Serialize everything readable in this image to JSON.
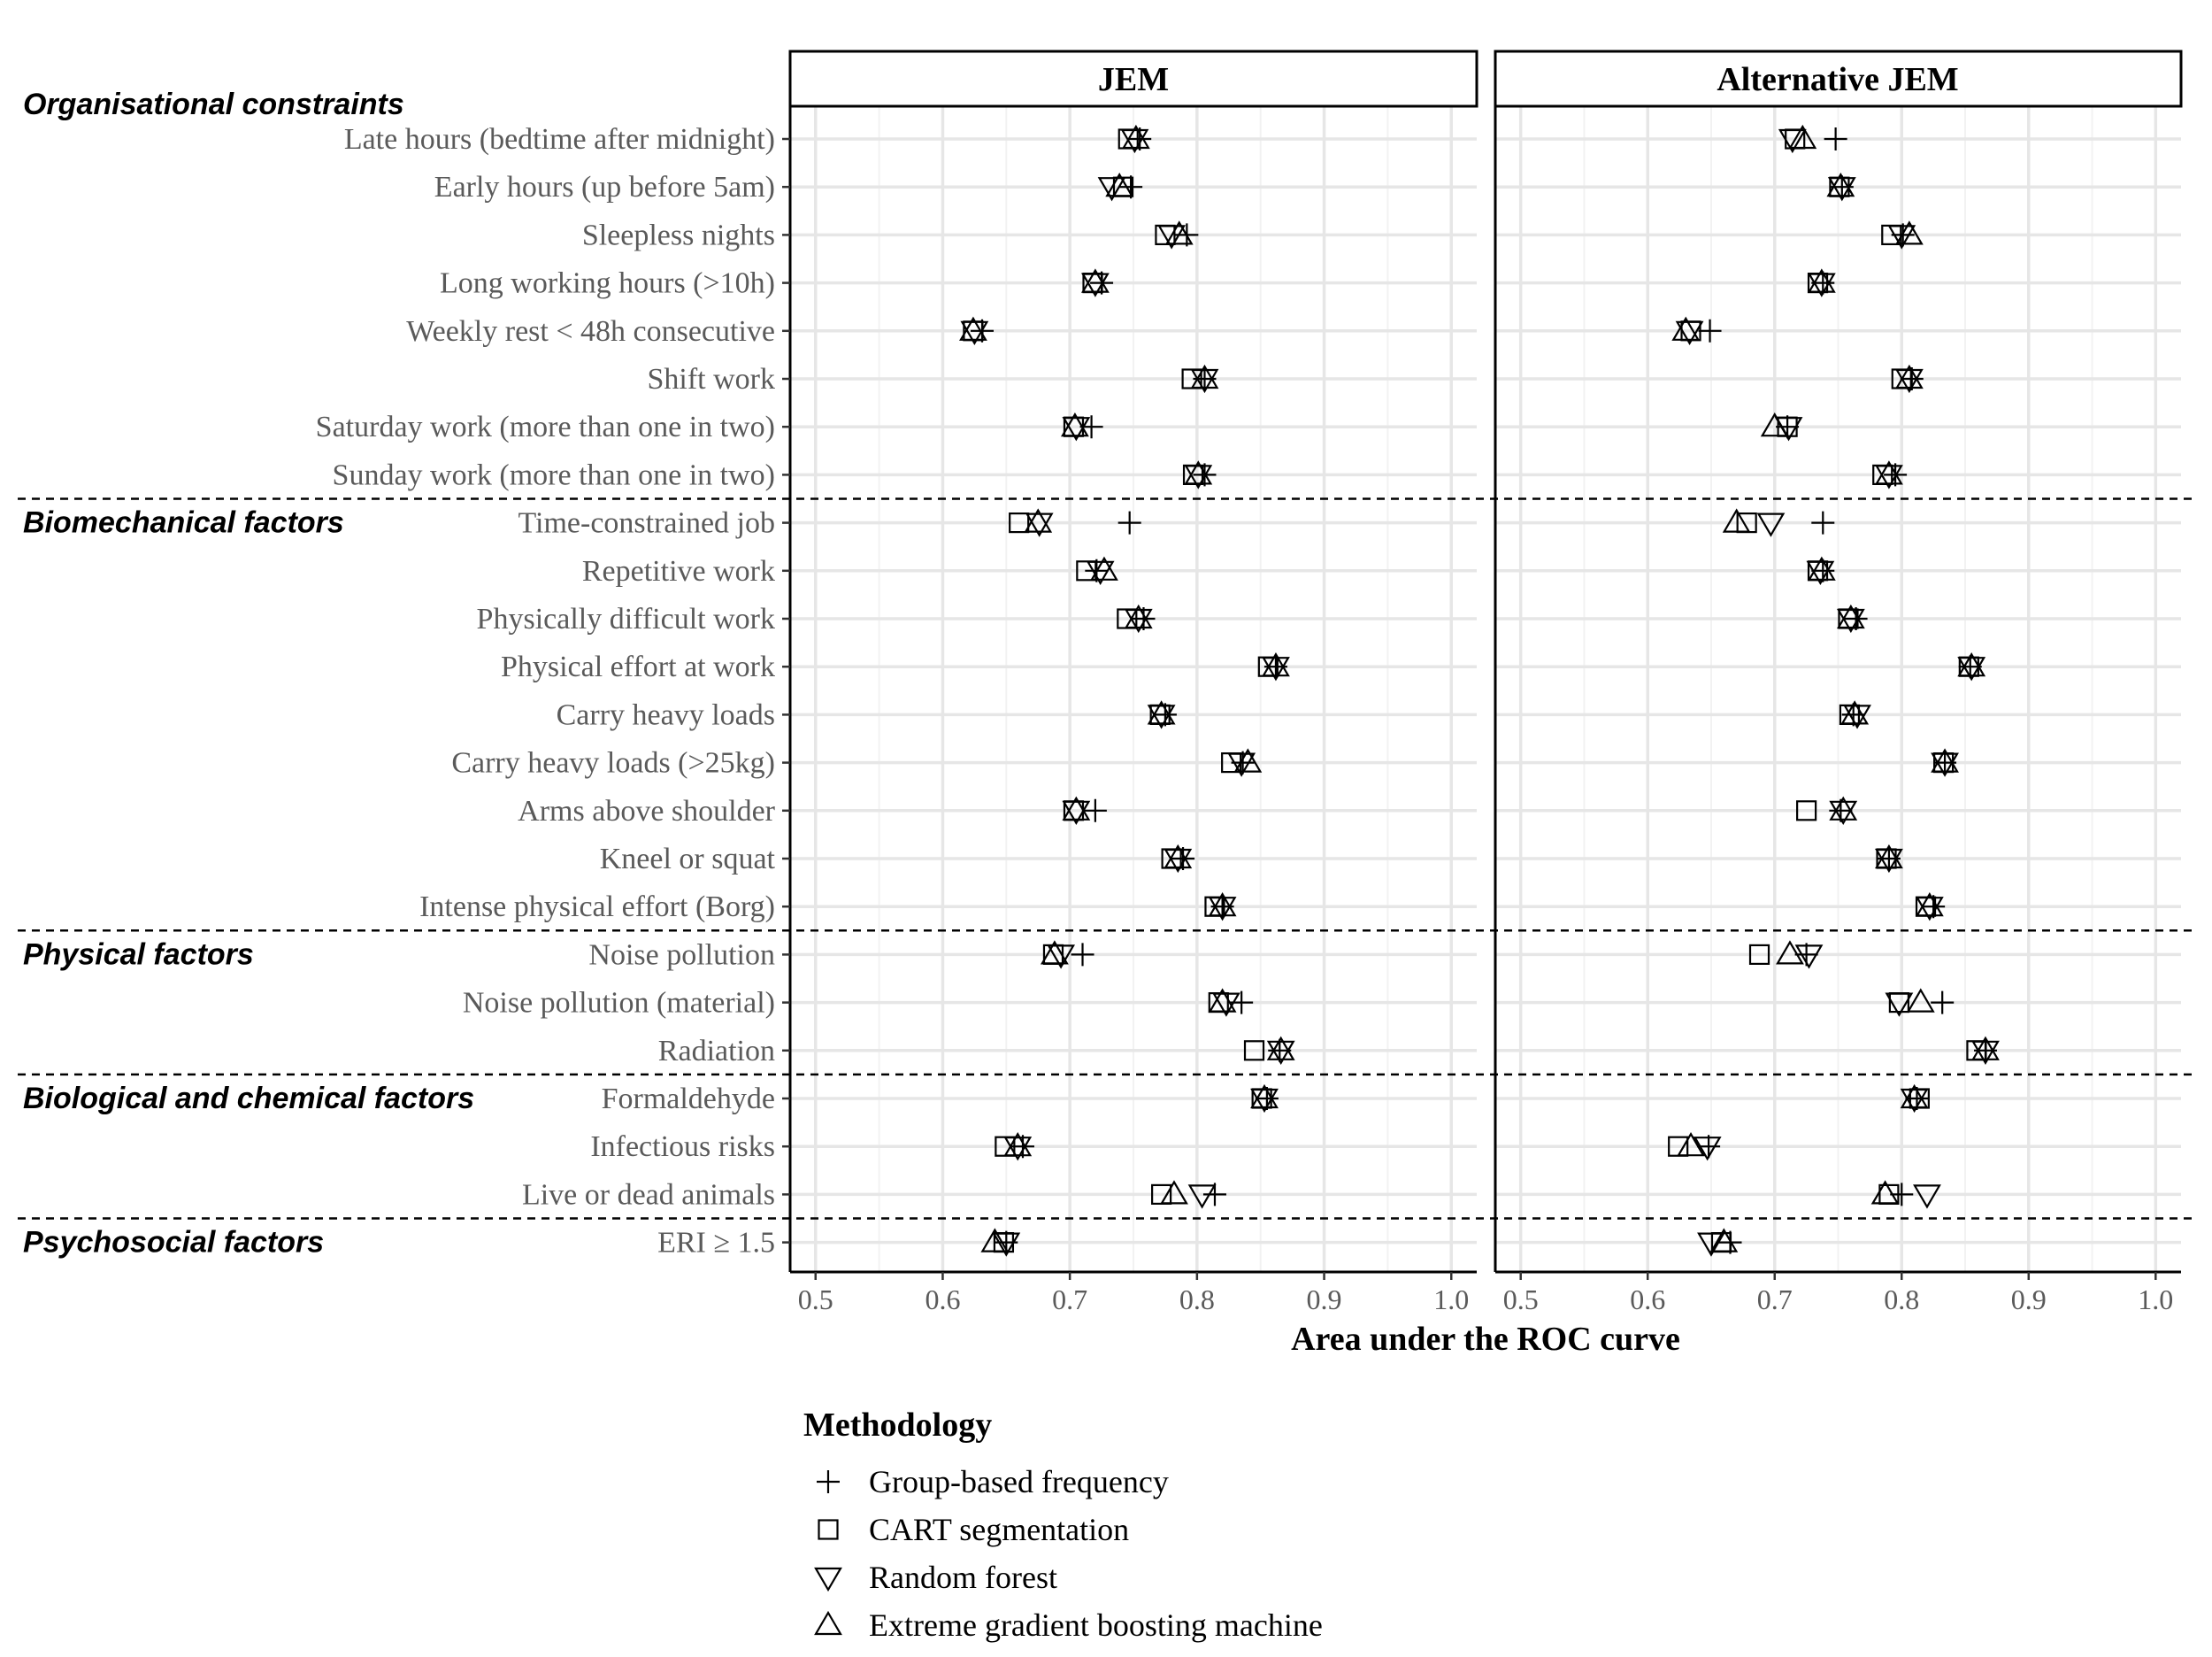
{
  "chart_data": {
    "type": "scatter",
    "xlabel": "Area under the ROC curve",
    "xlim": [
      0.48,
      1.02
    ],
    "xticks": [
      0.5,
      0.6,
      0.7,
      0.8,
      0.9,
      1.0
    ],
    "xtick_labels": [
      "0.5",
      "0.6",
      "0.7",
      "0.8",
      "0.9",
      "1.0"
    ],
    "panels": [
      "JEM",
      "Alternative JEM"
    ],
    "legend": {
      "title": "Methodology",
      "items": [
        {
          "key": "gbf",
          "label": "Group-based frequency",
          "shape": "plus"
        },
        {
          "key": "cart",
          "label": "CART segmentation",
          "shape": "square"
        },
        {
          "key": "rf",
          "label": "Random forest",
          "shape": "triangle-down"
        },
        {
          "key": "xgb",
          "label": "Extreme gradient boosting machine",
          "shape": "triangle-up"
        }
      ]
    },
    "groups": [
      {
        "label": "Organisational constraints",
        "rows": [
          {
            "label": "Late hours (bedtime after midnight)",
            "jem": {
              "gbf": 0.755,
              "cart": 0.746,
              "rf": 0.751,
              "xgb": 0.752
            },
            "alt": {
              "gbf": 0.748,
              "cart": 0.716,
              "rf": 0.714,
              "xgb": 0.722
            }
          },
          {
            "label": "Early hours (up before 5am)",
            "jem": {
              "gbf": 0.748,
              "cart": 0.742,
              "rf": 0.733,
              "xgb": 0.739
            },
            "alt": {
              "gbf": 0.753,
              "cart": 0.751,
              "rf": 0.753,
              "xgb": 0.752
            }
          },
          {
            "label": "Sleepless nights",
            "jem": {
              "gbf": 0.792,
              "cart": 0.775,
              "rf": 0.78,
              "xgb": 0.786
            },
            "alt": {
              "gbf": 0.801,
              "cart": 0.792,
              "rf": 0.8,
              "xgb": 0.806
            }
          },
          {
            "label": "Long working hours (>10h)",
            "jem": {
              "gbf": 0.725,
              "cart": 0.718,
              "rf": 0.72,
              "xgb": 0.72
            },
            "alt": {
              "gbf": 0.738,
              "cart": 0.734,
              "rf": 0.737,
              "xgb": 0.737
            }
          },
          {
            "label": "Weekly rest < 48h consecutive",
            "jem": {
              "gbf": 0.631,
              "cart": 0.624,
              "rf": 0.625,
              "xgb": 0.624
            },
            "alt": {
              "gbf": 0.649,
              "cart": 0.634,
              "rf": 0.633,
              "xgb": 0.63
            }
          },
          {
            "label": "Shift work",
            "jem": {
              "gbf": 0.806,
              "cart": 0.796,
              "rf": 0.806,
              "xgb": 0.806
            },
            "alt": {
              "gbf": 0.808,
              "cart": 0.8,
              "rf": 0.806,
              "xgb": 0.806
            }
          },
          {
            "label": "Saturday work (more than one in two)",
            "jem": {
              "gbf": 0.717,
              "cart": 0.703,
              "rf": 0.705,
              "xgb": 0.704
            },
            "alt": {
              "gbf": 0.71,
              "cart": 0.71,
              "rf": 0.711,
              "xgb": 0.7
            }
          },
          {
            "label": "Sunday work (more than one in two)",
            "jem": {
              "gbf": 0.806,
              "cart": 0.797,
              "rf": 0.801,
              "xgb": 0.801
            },
            "alt": {
              "gbf": 0.795,
              "cart": 0.785,
              "rf": 0.79,
              "xgb": 0.79
            }
          }
        ]
      },
      {
        "label": "Biomechanical factors",
        "rows": [
          {
            "label": "Time-constrained job",
            "jem": {
              "gbf": 0.747,
              "cart": 0.66,
              "rf": 0.676,
              "xgb": 0.675
            },
            "alt": {
              "gbf": 0.738,
              "cart": 0.678,
              "rf": 0.697,
              "xgb": 0.67
            }
          },
          {
            "label": "Repetitive work",
            "jem": {
              "gbf": 0.721,
              "cart": 0.713,
              "rf": 0.724,
              "xgb": 0.727
            },
            "alt": {
              "gbf": 0.738,
              "cart": 0.734,
              "rf": 0.736,
              "xgb": 0.737
            }
          },
          {
            "label": "Physically difficult work",
            "jem": {
              "gbf": 0.758,
              "cart": 0.745,
              "rf": 0.754,
              "xgb": 0.754
            },
            "alt": {
              "gbf": 0.764,
              "cart": 0.758,
              "rf": 0.76,
              "xgb": 0.76
            }
          },
          {
            "label": "Physical effort at work",
            "jem": {
              "gbf": 0.862,
              "cart": 0.856,
              "rf": 0.862,
              "xgb": 0.862
            },
            "alt": {
              "gbf": 0.854,
              "cart": 0.853,
              "rf": 0.855,
              "xgb": 0.855
            }
          },
          {
            "label": "Carry heavy loads",
            "jem": {
              "gbf": 0.775,
              "cart": 0.771,
              "rf": 0.772,
              "xgb": 0.772
            },
            "alt": {
              "gbf": 0.762,
              "cart": 0.759,
              "rf": 0.765,
              "xgb": 0.763
            }
          },
          {
            "label": "Carry heavy loads (>25kg)",
            "jem": {
              "gbf": 0.836,
              "cart": 0.827,
              "rf": 0.835,
              "xgb": 0.84
            },
            "alt": {
              "gbf": 0.834,
              "cart": 0.833,
              "rf": 0.834,
              "xgb": 0.834
            }
          },
          {
            "label": "Arms above shoulder",
            "jem": {
              "gbf": 0.72,
              "cart": 0.703,
              "rf": 0.705,
              "xgb": 0.705
            },
            "alt": {
              "gbf": 0.752,
              "cart": 0.725,
              "rf": 0.754,
              "xgb": 0.754
            }
          },
          {
            "label": "Kneel or squat",
            "jem": {
              "gbf": 0.789,
              "cart": 0.78,
              "rf": 0.785,
              "xgb": 0.785
            },
            "alt": {
              "gbf": 0.79,
              "cart": 0.788,
              "rf": 0.79,
              "xgb": 0.79
            }
          },
          {
            "label": "Intense physical effort (Borg)",
            "jem": {
              "gbf": 0.82,
              "cart": 0.814,
              "rf": 0.82,
              "xgb": 0.82
            },
            "alt": {
              "gbf": 0.825,
              "cart": 0.819,
              "rf": 0.822,
              "xgb": 0.822
            }
          }
        ]
      },
      {
        "label": "Physical factors",
        "rows": [
          {
            "label": "Noise pollution",
            "jem": {
              "gbf": 0.71,
              "cart": 0.687,
              "rf": 0.693,
              "xgb": 0.688
            },
            "alt": {
              "gbf": 0.725,
              "cart": 0.688,
              "rf": 0.727,
              "xgb": 0.712
            }
          },
          {
            "label": "Noise pollution (material)",
            "jem": {
              "gbf": 0.835,
              "cart": 0.817,
              "rf": 0.823,
              "xgb": 0.82
            },
            "alt": {
              "gbf": 0.832,
              "cart": 0.798,
              "rf": 0.798,
              "xgb": 0.815
            }
          },
          {
            "label": "Radiation",
            "jem": {
              "gbf": 0.865,
              "cart": 0.845,
              "rf": 0.866,
              "xgb": 0.866
            },
            "alt": {
              "gbf": 0.866,
              "cart": 0.859,
              "rf": 0.866,
              "xgb": 0.866
            }
          }
        ]
      },
      {
        "label": "Biological and chemical factors",
        "rows": [
          {
            "label": "Formaldehyde",
            "jem": {
              "gbf": 0.855,
              "cart": 0.851,
              "rf": 0.853,
              "xgb": 0.853
            },
            "alt": {
              "gbf": 0.812,
              "cart": 0.814,
              "rf": 0.81,
              "xgb": 0.81
            }
          },
          {
            "label": "Infectious risks",
            "jem": {
              "gbf": 0.663,
              "cart": 0.649,
              "rf": 0.659,
              "xgb": 0.659
            },
            "alt": {
              "gbf": 0.648,
              "cart": 0.624,
              "rf": 0.647,
              "xgb": 0.634
            }
          },
          {
            "label": "Live or dead animals",
            "jem": {
              "gbf": 0.814,
              "cart": 0.772,
              "rf": 0.804,
              "xgb": 0.782
            },
            "alt": {
              "gbf": 0.8,
              "cart": 0.79,
              "rf": 0.82,
              "xgb": 0.787
            }
          }
        ]
      },
      {
        "label": "Psychosocial factors",
        "rows": [
          {
            "label": "ERI ≥ 1.5",
            "jem": {
              "gbf": 0.65,
              "cart": 0.648,
              "rf": 0.65,
              "xgb": 0.641
            },
            "alt": {
              "gbf": 0.665,
              "cart": 0.658,
              "rf": 0.65,
              "xgb": 0.66
            }
          }
        ]
      }
    ]
  }
}
